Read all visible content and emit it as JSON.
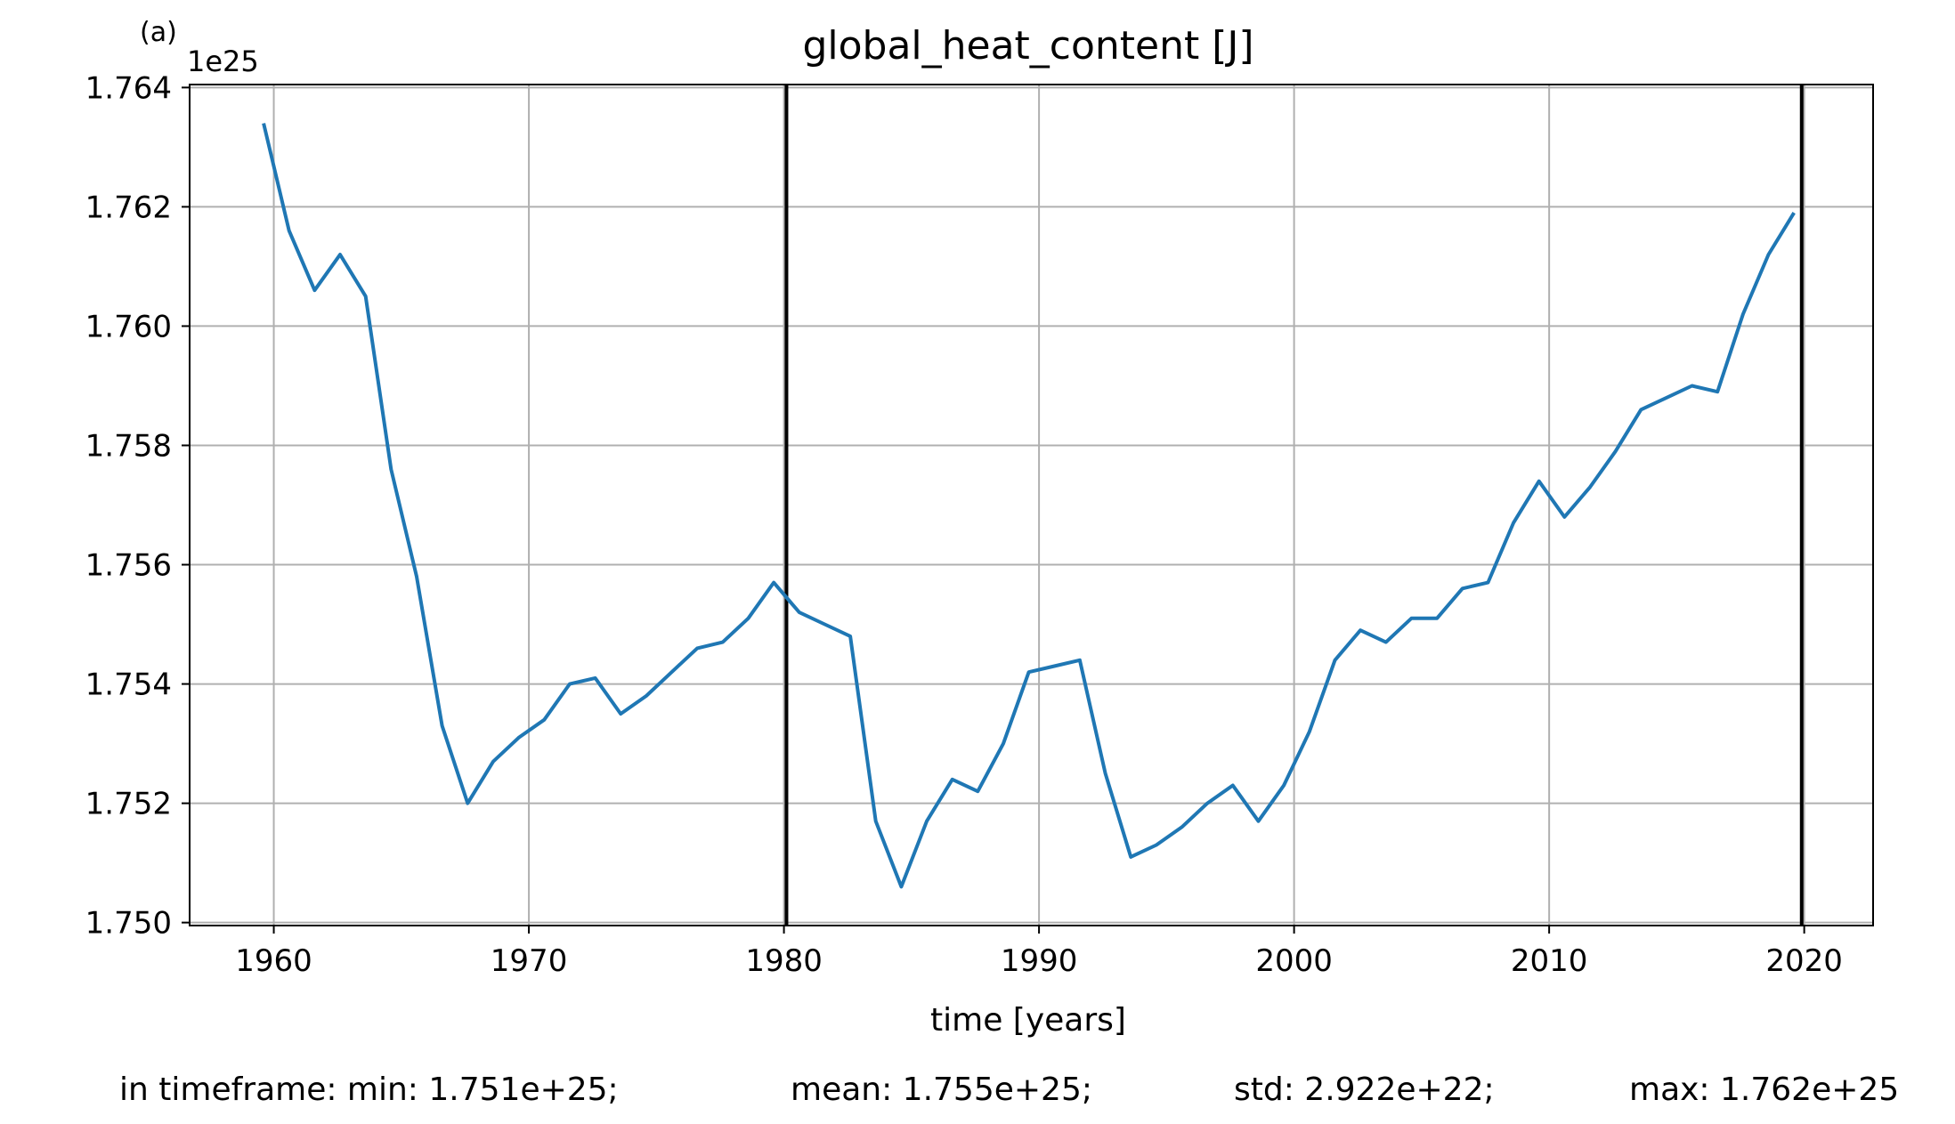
{
  "panel_label": "(a)",
  "footer": {
    "min": "in timeframe: min: 1.751e+25;",
    "mean": "mean: 1.755e+25;",
    "std": "std: 2.922e+22;",
    "max": "max: 1.762e+25"
  },
  "colors": {
    "series": "#1f77b4",
    "grid": "#b0b0b0",
    "vlines": "#000000"
  },
  "chart_data": {
    "type": "line",
    "title": "global_heat_content [J]",
    "xlabel": "time [years]",
    "ylabel": "",
    "y_offset_label": "1e25",
    "y_scale": 1e+25,
    "xlim": [
      1956.7,
      2022.7
    ],
    "ylim": [
      1.74995,
      1.76405
    ],
    "xticks": [
      1960,
      1970,
      1980,
      1990,
      2000,
      2010,
      2020
    ],
    "xtick_labels": [
      "1960",
      "1970",
      "1980",
      "1990",
      "2000",
      "2010",
      "2020"
    ],
    "yticks": [
      1.75,
      1.752,
      1.754,
      1.756,
      1.758,
      1.76,
      1.762,
      1.764
    ],
    "ytick_labels": [
      "1.750",
      "1.752",
      "1.754",
      "1.756",
      "1.758",
      "1.760",
      "1.762",
      "1.764"
    ],
    "grid": true,
    "vertical_lines": [
      1980.1,
      2019.9
    ],
    "series": [
      {
        "x": [
          1959.6,
          1960.6,
          1961.6,
          1962.6,
          1963.6,
          1964.6,
          1965.6,
          1966.6,
          1967.6,
          1968.6,
          1969.6,
          1970.6,
          1971.6,
          1972.6,
          1973.6,
          1974.6,
          1975.6,
          1976.6,
          1977.6,
          1978.6,
          1979.6,
          1980.6,
          1981.6,
          1982.6,
          1983.6,
          1984.6,
          1985.6,
          1986.6,
          1987.6,
          1988.6,
          1989.6,
          1990.6,
          1991.6,
          1992.6,
          1993.6,
          1994.6,
          1995.6,
          1996.6,
          1997.6,
          1998.6,
          1999.6,
          2000.6,
          2001.6,
          2002.6,
          2003.6,
          2004.6,
          2005.6,
          2006.6,
          2007.6,
          2008.6,
          2009.6,
          2010.6,
          2011.6,
          2012.6,
          2013.6,
          2014.6,
          2015.6,
          2016.6,
          2017.6,
          2018.6,
          2019.6
        ],
        "values": [
          1.7634,
          1.7616,
          1.7606,
          1.7612,
          1.7605,
          1.7576,
          1.7558,
          1.7533,
          1.752,
          1.7527,
          1.7531,
          1.7534,
          1.754,
          1.7541,
          1.7535,
          1.7538,
          1.7542,
          1.7546,
          1.7547,
          1.7551,
          1.7557,
          1.7552,
          1.755,
          1.7548,
          1.7517,
          1.7506,
          1.7517,
          1.7524,
          1.7522,
          1.753,
          1.7542,
          1.7543,
          1.7544,
          1.7525,
          1.7511,
          1.7513,
          1.7516,
          1.752,
          1.7523,
          1.7517,
          1.7523,
          1.7532,
          1.7544,
          1.7549,
          1.7547,
          1.7551,
          1.7551,
          1.7556,
          1.7557,
          1.7567,
          1.7574,
          1.7568,
          1.7573,
          1.7579,
          1.7586,
          1.7588,
          1.759,
          1.7589,
          1.7602,
          1.7612,
          1.7619
        ]
      }
    ]
  }
}
